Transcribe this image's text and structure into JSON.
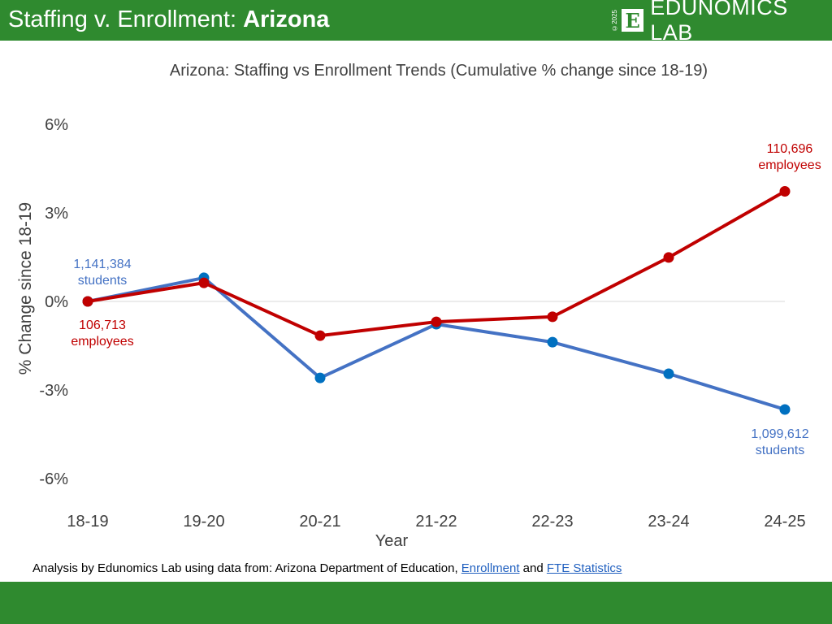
{
  "header": {
    "title_prefix": "Staffing v. Enrollment: ",
    "title_state": "Arizona",
    "logo_copyright": "©2025",
    "logo_letter": "E",
    "logo_name": "EDUNOMICS LAB"
  },
  "source": {
    "prefix": "Analysis by Edunomics Lab using data from: Arizona Department of Education, ",
    "link1": "Enrollment",
    "middle": " and ",
    "link2": "FTE Statistics"
  },
  "colors": {
    "staffing": "#c00000",
    "enrollment": "#4472c4",
    "marker_enrollment": "#0070c0",
    "brand_green": "#2f8a2f"
  },
  "chart_data": {
    "type": "line",
    "title": "Arizona: Staffing vs Enrollment Trends (Cumulative % change since 18-19)",
    "xlabel": "Year",
    "ylabel": "% Change since 18-19",
    "categories": [
      "18-19",
      "19-20",
      "20-21",
      "21-22",
      "22-23",
      "23-24",
      "24-25"
    ],
    "ylim": [
      -6,
      6
    ],
    "yticks": [
      6,
      3,
      0,
      -3,
      -6
    ],
    "ytick_labels": [
      "6%",
      "3%",
      "0%",
      "-3%",
      "-6%"
    ],
    "grid": false,
    "series": [
      {
        "key": "staffing",
        "values": [
          0,
          0.63,
          -1.16,
          -0.69,
          -0.52,
          1.49,
          3.73
        ]
      },
      {
        "key": "enrollment",
        "values": [
          0,
          0.8,
          -2.59,
          -0.77,
          -1.38,
          -2.45,
          -3.66
        ]
      }
    ],
    "annotations": [
      {
        "series": "enrollment",
        "index": 0,
        "lines": [
          "1,141,384",
          "students"
        ]
      },
      {
        "series": "staffing",
        "index": 0,
        "lines": [
          "106,713",
          "employees"
        ]
      },
      {
        "series": "staffing",
        "index": 6,
        "lines": [
          "110,696",
          "employees"
        ]
      },
      {
        "series": "enrollment",
        "index": 6,
        "lines": [
          "1,099,612",
          "students"
        ]
      }
    ]
  }
}
